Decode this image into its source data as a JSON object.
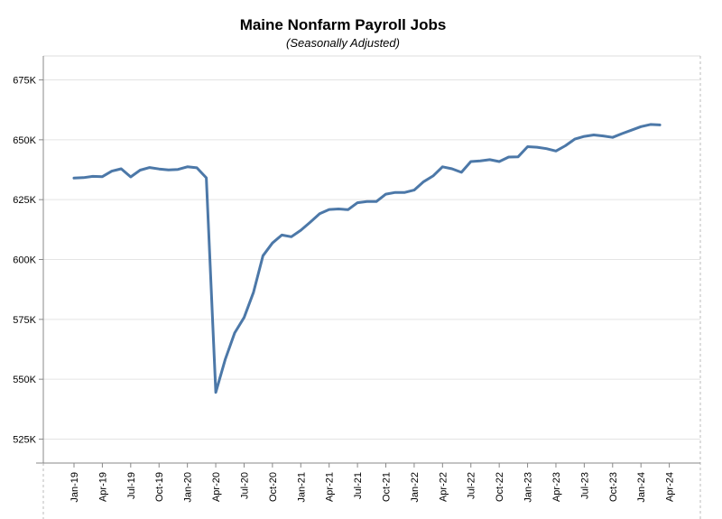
{
  "chart_data": {
    "type": "line",
    "title": "Maine Nonfarm Payroll Jobs",
    "subtitle": "(Seasonally Adjusted)",
    "xlabel": "",
    "ylabel": "",
    "ylim": [
      515000,
      685000
    ],
    "y_ticks": [
      525000,
      550000,
      575000,
      600000,
      625000,
      650000,
      675000
    ],
    "y_tick_labels": [
      "525K",
      "550K",
      "575K",
      "600K",
      "625K",
      "650K",
      "675K"
    ],
    "x_ticks": [
      "2019-01",
      "2019-04",
      "2019-07",
      "2019-10",
      "2020-01",
      "2020-04",
      "2020-07",
      "2020-10",
      "2021-01",
      "2021-04",
      "2021-07",
      "2021-10",
      "2022-01",
      "2022-04",
      "2022-07",
      "2022-10",
      "2023-01",
      "2023-04",
      "2023-07",
      "2023-10",
      "2024-01",
      "2024-04"
    ],
    "x_tick_labels": [
      "Jan-19",
      "Apr-19",
      "Jul-19",
      "Oct-19",
      "Jan-20",
      "Apr-20",
      "Jul-20",
      "Oct-20",
      "Jan-21",
      "Apr-21",
      "Jul-21",
      "Oct-21",
      "Jan-22",
      "Apr-22",
      "Jul-22",
      "Oct-22",
      "Jan-23",
      "Apr-23",
      "Jul-23",
      "Oct-23",
      "Jan-24",
      "Apr-24"
    ],
    "grid": true,
    "color": "#4c78a8",
    "x": [
      "2019-01",
      "2019-02",
      "2019-03",
      "2019-04",
      "2019-05",
      "2019-06",
      "2019-07",
      "2019-08",
      "2019-09",
      "2019-10",
      "2019-11",
      "2019-12",
      "2020-01",
      "2020-02",
      "2020-03",
      "2020-04",
      "2020-05",
      "2020-06",
      "2020-07",
      "2020-08",
      "2020-09",
      "2020-10",
      "2020-11",
      "2020-12",
      "2021-01",
      "2021-02",
      "2021-03",
      "2021-04",
      "2021-05",
      "2021-06",
      "2021-07",
      "2021-08",
      "2021-09",
      "2021-10",
      "2021-11",
      "2021-12",
      "2022-01",
      "2022-02",
      "2022-03",
      "2022-04",
      "2022-05",
      "2022-06",
      "2022-07",
      "2022-08",
      "2022-09",
      "2022-10",
      "2022-11",
      "2022-12",
      "2023-01",
      "2023-02",
      "2023-03",
      "2023-04",
      "2023-05",
      "2023-06",
      "2023-07",
      "2023-08",
      "2023-09",
      "2023-10",
      "2023-11",
      "2023-12",
      "2024-01",
      "2024-02",
      "2024-03"
    ],
    "values": [
      634000,
      634200,
      634700,
      634600,
      636900,
      637900,
      634500,
      637300,
      638400,
      637800,
      637400,
      637600,
      638700,
      638300,
      634100,
      544500,
      558200,
      569300,
      575800,
      586300,
      601600,
      606900,
      610200,
      609500,
      612200,
      615600,
      619100,
      620900,
      621100,
      620800,
      623700,
      624200,
      624200,
      627300,
      628000,
      628000,
      629000,
      632500,
      634900,
      638700,
      637900,
      636400,
      640900,
      641200,
      641700,
      640900,
      642800,
      642900,
      647100,
      646900,
      646300,
      645300,
      647500,
      650300,
      651400,
      652000,
      651600,
      651000,
      652600,
      654000,
      655500,
      656400,
      656200
    ]
  }
}
